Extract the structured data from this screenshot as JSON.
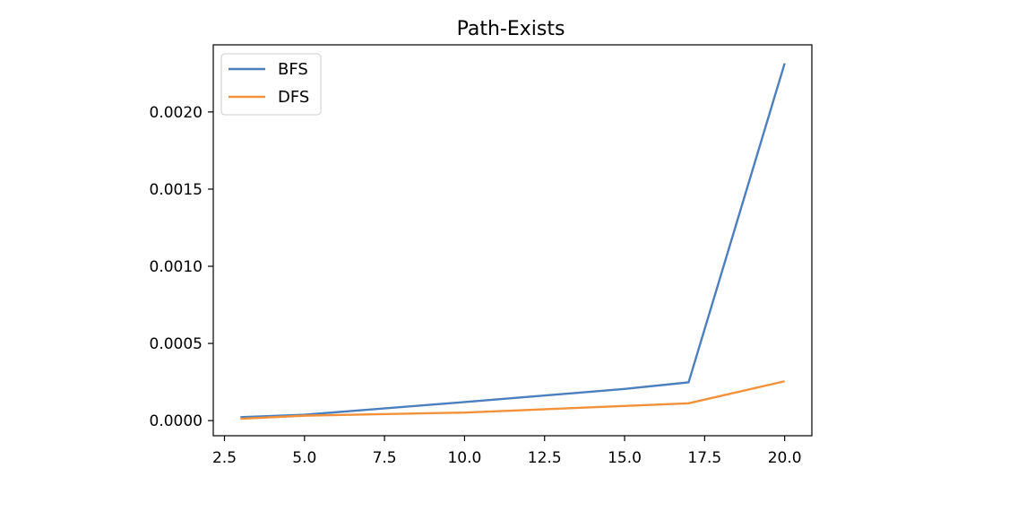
{
  "chart_data": {
    "type": "line",
    "title": "Path-Exists",
    "xlabel": "",
    "ylabel": "",
    "xlim": [
      2.15,
      20.85
    ],
    "ylim": [
      -9.8e-05,
      0.002435
    ],
    "x_ticks": [
      2.5,
      5.0,
      7.5,
      10.0,
      12.5,
      15.0,
      17.5,
      20.0
    ],
    "x_tick_labels": [
      "2.5",
      "5.0",
      "7.5",
      "10.0",
      "12.5",
      "15.0",
      "17.5",
      "20.0"
    ],
    "y_ticks": [
      0.0,
      0.0005,
      0.001,
      0.0015,
      0.002
    ],
    "y_tick_labels": [
      "0.0000",
      "0.0005",
      "0.0010",
      "0.0015",
      "0.0020"
    ],
    "grid": false,
    "legend_position": "top-left",
    "series": [
      {
        "name": "BFS",
        "color": "#4c7fbd",
        "x": [
          3,
          5,
          10,
          15,
          17,
          20
        ],
        "y": [
          2.2e-05,
          3.8e-05,
          0.00012,
          0.000205,
          0.000248,
          0.002315
        ]
      },
      {
        "name": "DFS",
        "color": "#f3913a",
        "x": [
          3,
          5,
          10,
          15,
          17,
          20
        ],
        "y": [
          1.2e-05,
          3.2e-05,
          5.2e-05,
          9.5e-05,
          0.000112,
          0.000255
        ]
      }
    ]
  }
}
